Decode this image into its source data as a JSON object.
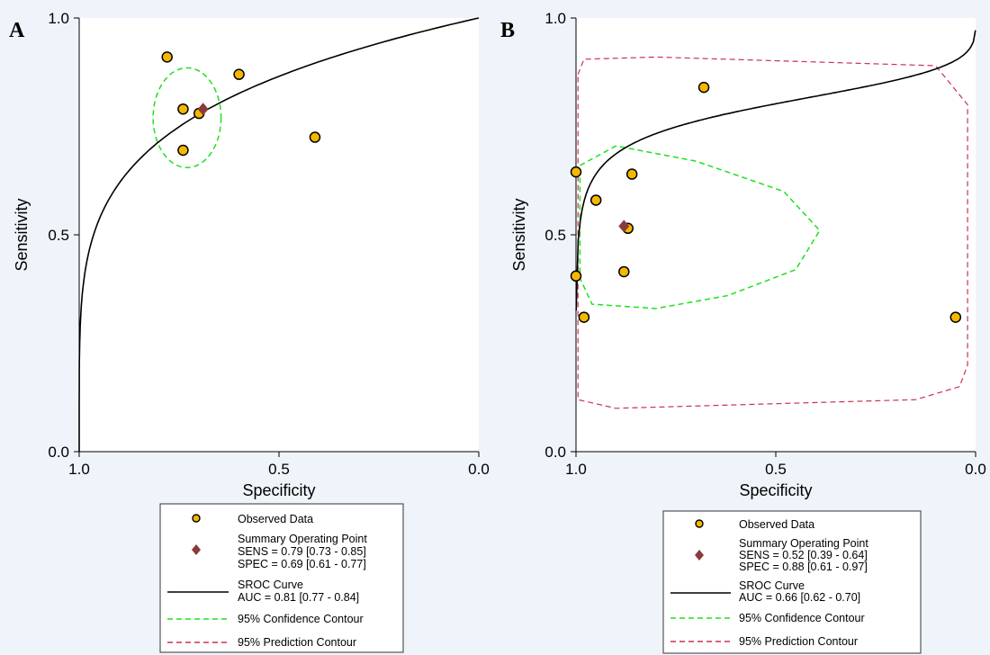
{
  "colors": {
    "page_bg": "#eef4f9",
    "plot_bg": "#ffffff",
    "observed_fill": "#f5b800",
    "summary_fill": "#8b3a3a",
    "sroc_line": "#000000",
    "confidence": "#1ee01e",
    "prediction": "#c8324e"
  },
  "chart_data": [
    {
      "type": "scatter",
      "panel_label": "A",
      "xlabel": "Specificity",
      "ylabel": "Sensitivity",
      "xlim": [
        1.0,
        0.0
      ],
      "ylim": [
        0.0,
        1.0
      ],
      "x_ticks": [
        "1.0",
        "0.5",
        "0.0"
      ],
      "y_ticks": [
        "0.0",
        "0.5",
        "1.0"
      ],
      "grid": false,
      "legend_position": "bottom",
      "observed": {
        "specificity": [
          0.78,
          0.74,
          0.7,
          0.6,
          0.41,
          0.74
        ],
        "sensitivity": [
          0.91,
          0.79,
          0.78,
          0.87,
          0.725,
          0.695
        ]
      },
      "summary_point": {
        "specificity": 0.69,
        "sensitivity": 0.79
      },
      "sroc_auc": 0.81,
      "confidence_contour": {
        "center": [
          0.73,
          0.77
        ],
        "rx": 0.085,
        "ry": 0.115
      },
      "legend": [
        {
          "key": "observed",
          "lines": [
            "Observed Data"
          ]
        },
        {
          "key": "summary",
          "lines": [
            "Summary Operating Point",
            "SENS = 0.79 [0.73 - 0.85]",
            "SPEC = 0.69 [0.61 - 0.77]"
          ]
        },
        {
          "key": "sroc",
          "lines": [
            "SROC Curve",
            "AUC = 0.81 [0.77 - 0.84]"
          ]
        },
        {
          "key": "confidence",
          "lines": [
            "95% Confidence Contour"
          ]
        },
        {
          "key": "prediction",
          "lines": [
            "95% Prediction Contour"
          ]
        }
      ]
    },
    {
      "type": "scatter",
      "panel_label": "B",
      "xlabel": "Specificity",
      "ylabel": "Sensitivity",
      "xlim": [
        1.0,
        0.0
      ],
      "ylim": [
        0.0,
        1.0
      ],
      "x_ticks": [
        "1.0",
        "0.5",
        "0.0"
      ],
      "y_ticks": [
        "0.0",
        "0.5",
        "1.0"
      ],
      "grid": false,
      "legend_position": "bottom",
      "observed": {
        "specificity": [
          0.68,
          1.0,
          0.86,
          0.95,
          0.87,
          1.0,
          0.98,
          0.05,
          0.88
        ],
        "sensitivity": [
          0.84,
          0.645,
          0.64,
          0.58,
          0.515,
          0.405,
          0.31,
          0.31,
          0.415
        ]
      },
      "summary_point": {
        "specificity": 0.88,
        "sensitivity": 0.52
      },
      "sroc_auc": 0.66,
      "confidence_contour": [
        [
          0.99,
          0.66
        ],
        [
          0.9,
          0.705
        ],
        [
          0.7,
          0.67
        ],
        [
          0.48,
          0.6
        ],
        [
          0.39,
          0.51
        ],
        [
          0.45,
          0.42
        ],
        [
          0.62,
          0.36
        ],
        [
          0.8,
          0.33
        ],
        [
          0.96,
          0.34
        ],
        [
          0.99,
          0.4
        ],
        [
          0.99,
          0.55
        ]
      ],
      "prediction_contour": [
        [
          0.995,
          0.87
        ],
        [
          0.98,
          0.905
        ],
        [
          0.8,
          0.91
        ],
        [
          0.1,
          0.89
        ],
        [
          0.02,
          0.8
        ],
        [
          0.02,
          0.2
        ],
        [
          0.04,
          0.15
        ],
        [
          0.15,
          0.12
        ],
        [
          0.9,
          0.1
        ],
        [
          0.995,
          0.12
        ],
        [
          0.995,
          0.5
        ]
      ],
      "legend": [
        {
          "key": "observed",
          "lines": [
            "Observed Data"
          ]
        },
        {
          "key": "summary",
          "lines": [
            "Summary Operating Point",
            "SENS = 0.52 [0.39 - 0.64]",
            "SPEC = 0.88 [0.61 - 0.97]"
          ]
        },
        {
          "key": "sroc",
          "lines": [
            "SROC Curve",
            "AUC = 0.66 [0.62 - 0.70]"
          ]
        },
        {
          "key": "confidence",
          "lines": [
            "95% Confidence Contour"
          ]
        },
        {
          "key": "prediction",
          "lines": [
            "95% Prediction Contour"
          ]
        }
      ]
    }
  ]
}
